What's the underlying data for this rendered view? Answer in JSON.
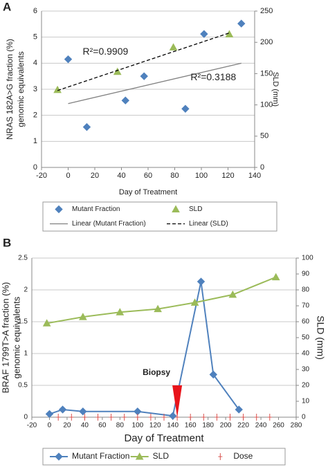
{
  "chart_data": [
    {
      "type": "scatter",
      "label": "A",
      "xlabel": "Day of Treatment",
      "ylabel": [
        "NRAS 182A>G fraction (%)",
        "genomic equivalents"
      ],
      "y2label": "SLD (mm)",
      "xlim": [
        -20,
        140
      ],
      "xticks": [
        -20,
        0,
        20,
        40,
        60,
        80,
        100,
        120,
        140
      ],
      "ylim": [
        0,
        6
      ],
      "yticks": [
        0,
        1,
        2,
        3,
        4,
        5,
        6
      ],
      "y2lim": [
        0,
        250
      ],
      "y2ticks": [
        0,
        50,
        100,
        150,
        200,
        250
      ],
      "grid": true,
      "legend": "bottom",
      "series": [
        {
          "name": "Mutant Fraction",
          "color": "#4f81bd",
          "marker": "diamond",
          "line": false,
          "x": [
            0,
            14,
            43,
            57,
            88,
            102,
            130
          ],
          "values": [
            4.15,
            1.55,
            2.57,
            3.5,
            2.25,
            5.12,
            5.52
          ]
        },
        {
          "name": "SLD",
          "color": "#9bbb59",
          "marker": "triangle",
          "line": false,
          "axis": "y2",
          "x": [
            -8,
            37,
            79,
            121
          ],
          "values": [
            124,
            153,
            192,
            213
          ]
        },
        {
          "name": "Linear (Mutant Fraction)",
          "color": "#808080",
          "marker": "none",
          "line": true,
          "dash": false,
          "x": [
            0,
            130
          ],
          "values": [
            2.45,
            4.0
          ]
        },
        {
          "name": "Linear (SLD)",
          "color": "#000000",
          "marker": "none",
          "line": true,
          "dash": true,
          "axis": "y2",
          "x": [
            -8,
            121
          ],
          "values": [
            123,
            215
          ]
        }
      ],
      "annotations": [
        {
          "text": "R²=0.9909",
          "x": 28,
          "y": 4.42
        },
        {
          "text": "R²=0.3188",
          "x": 109,
          "y": 3.45
        }
      ]
    },
    {
      "type": "line",
      "label": "B",
      "xlabel": "Day of Treatment",
      "ylabel": [
        "BRAF 1799T>A fraction (%)",
        "genomic equivalents"
      ],
      "y2label": "SLD (mm)",
      "xlim": [
        -20,
        280
      ],
      "xticks": [
        -20,
        0,
        20,
        40,
        60,
        80,
        100,
        120,
        140,
        160,
        180,
        200,
        220,
        240,
        260,
        280
      ],
      "ylim": [
        0,
        2.5
      ],
      "yticks": [
        0,
        0.5,
        1,
        1.5,
        2,
        2.5
      ],
      "y2lim": [
        0,
        100
      ],
      "y2ticks": [
        0,
        10,
        20,
        30,
        40,
        50,
        60,
        70,
        80,
        90,
        100
      ],
      "grid": true,
      "legend": "bottom",
      "series": [
        {
          "name": "Mutant Fraction",
          "color": "#4f81bd",
          "marker": "diamond",
          "line": true,
          "x": [
            0,
            15,
            38,
            100,
            140,
            172,
            186,
            215
          ],
          "values": [
            0.05,
            0.12,
            0.09,
            0.09,
            0.02,
            2.13,
            0.67,
            0.12
          ]
        },
        {
          "name": "SLD",
          "color": "#9bbb59",
          "marker": "triangle",
          "line": true,
          "axis": "y2",
          "x": [
            -3,
            38,
            80,
            123,
            165,
            208,
            257
          ],
          "values": [
            59,
            63,
            66,
            68,
            72,
            77,
            88
          ]
        },
        {
          "name": "Dose",
          "color": "#d9534f",
          "marker": "plus",
          "line": false,
          "x": [
            10,
            25,
            40,
            55,
            70,
            85,
            100,
            115,
            130,
            145,
            160,
            175,
            190,
            205,
            220,
            235,
            250
          ],
          "values": [
            0,
            0,
            0,
            0,
            0,
            0,
            0,
            0,
            0,
            0,
            0,
            0,
            0,
            0,
            0,
            0,
            0
          ]
        }
      ],
      "annotations": [
        {
          "text": "Biopsy",
          "x": 145,
          "y": 0.5,
          "arrow": true,
          "color": "#e8141b"
        }
      ]
    }
  ]
}
